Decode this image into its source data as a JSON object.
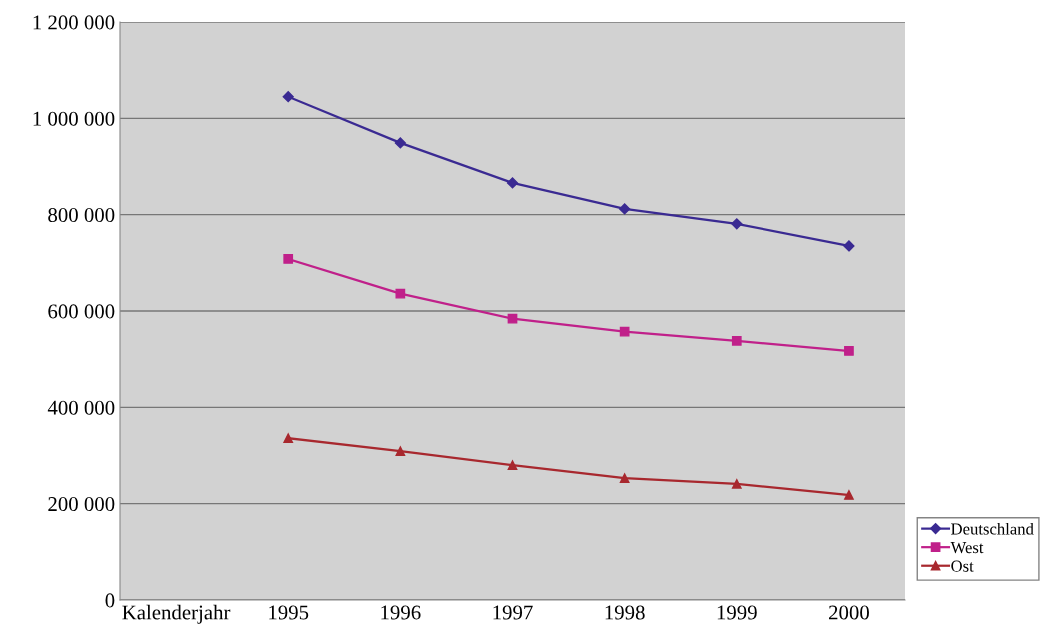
{
  "chart_data": {
    "type": "line",
    "categories": [
      "Kalenderjahr",
      "1995",
      "1996",
      "1997",
      "1998",
      "1999",
      "2000"
    ],
    "series": [
      {
        "name": "Deutschland",
        "color": "#3a2a92",
        "marker": "diamond",
        "values": [
          null,
          1045000,
          949000,
          866000,
          812000,
          781000,
          735000
        ]
      },
      {
        "name": "West",
        "color": "#c0208a",
        "marker": "square",
        "values": [
          null,
          708000,
          636000,
          584000,
          557000,
          538000,
          517000
        ]
      },
      {
        "name": "Ost",
        "color": "#a8282e",
        "marker": "triangle",
        "values": [
          null,
          336000,
          309000,
          280000,
          253000,
          241000,
          218000
        ]
      }
    ],
    "ylim": [
      0,
      1200000
    ],
    "yticks": [
      {
        "value": 0,
        "label": "0"
      },
      {
        "value": 200000,
        "label": "200 000"
      },
      {
        "value": 400000,
        "label": "400 000"
      },
      {
        "value": 600000,
        "label": "600 000"
      },
      {
        "value": 800000,
        "label": "800 000"
      },
      {
        "value": 1000000,
        "label": "1 000 000"
      },
      {
        "value": 1200000,
        "label": "1 200 000"
      }
    ],
    "grid": "y",
    "legend": "bottom right"
  }
}
